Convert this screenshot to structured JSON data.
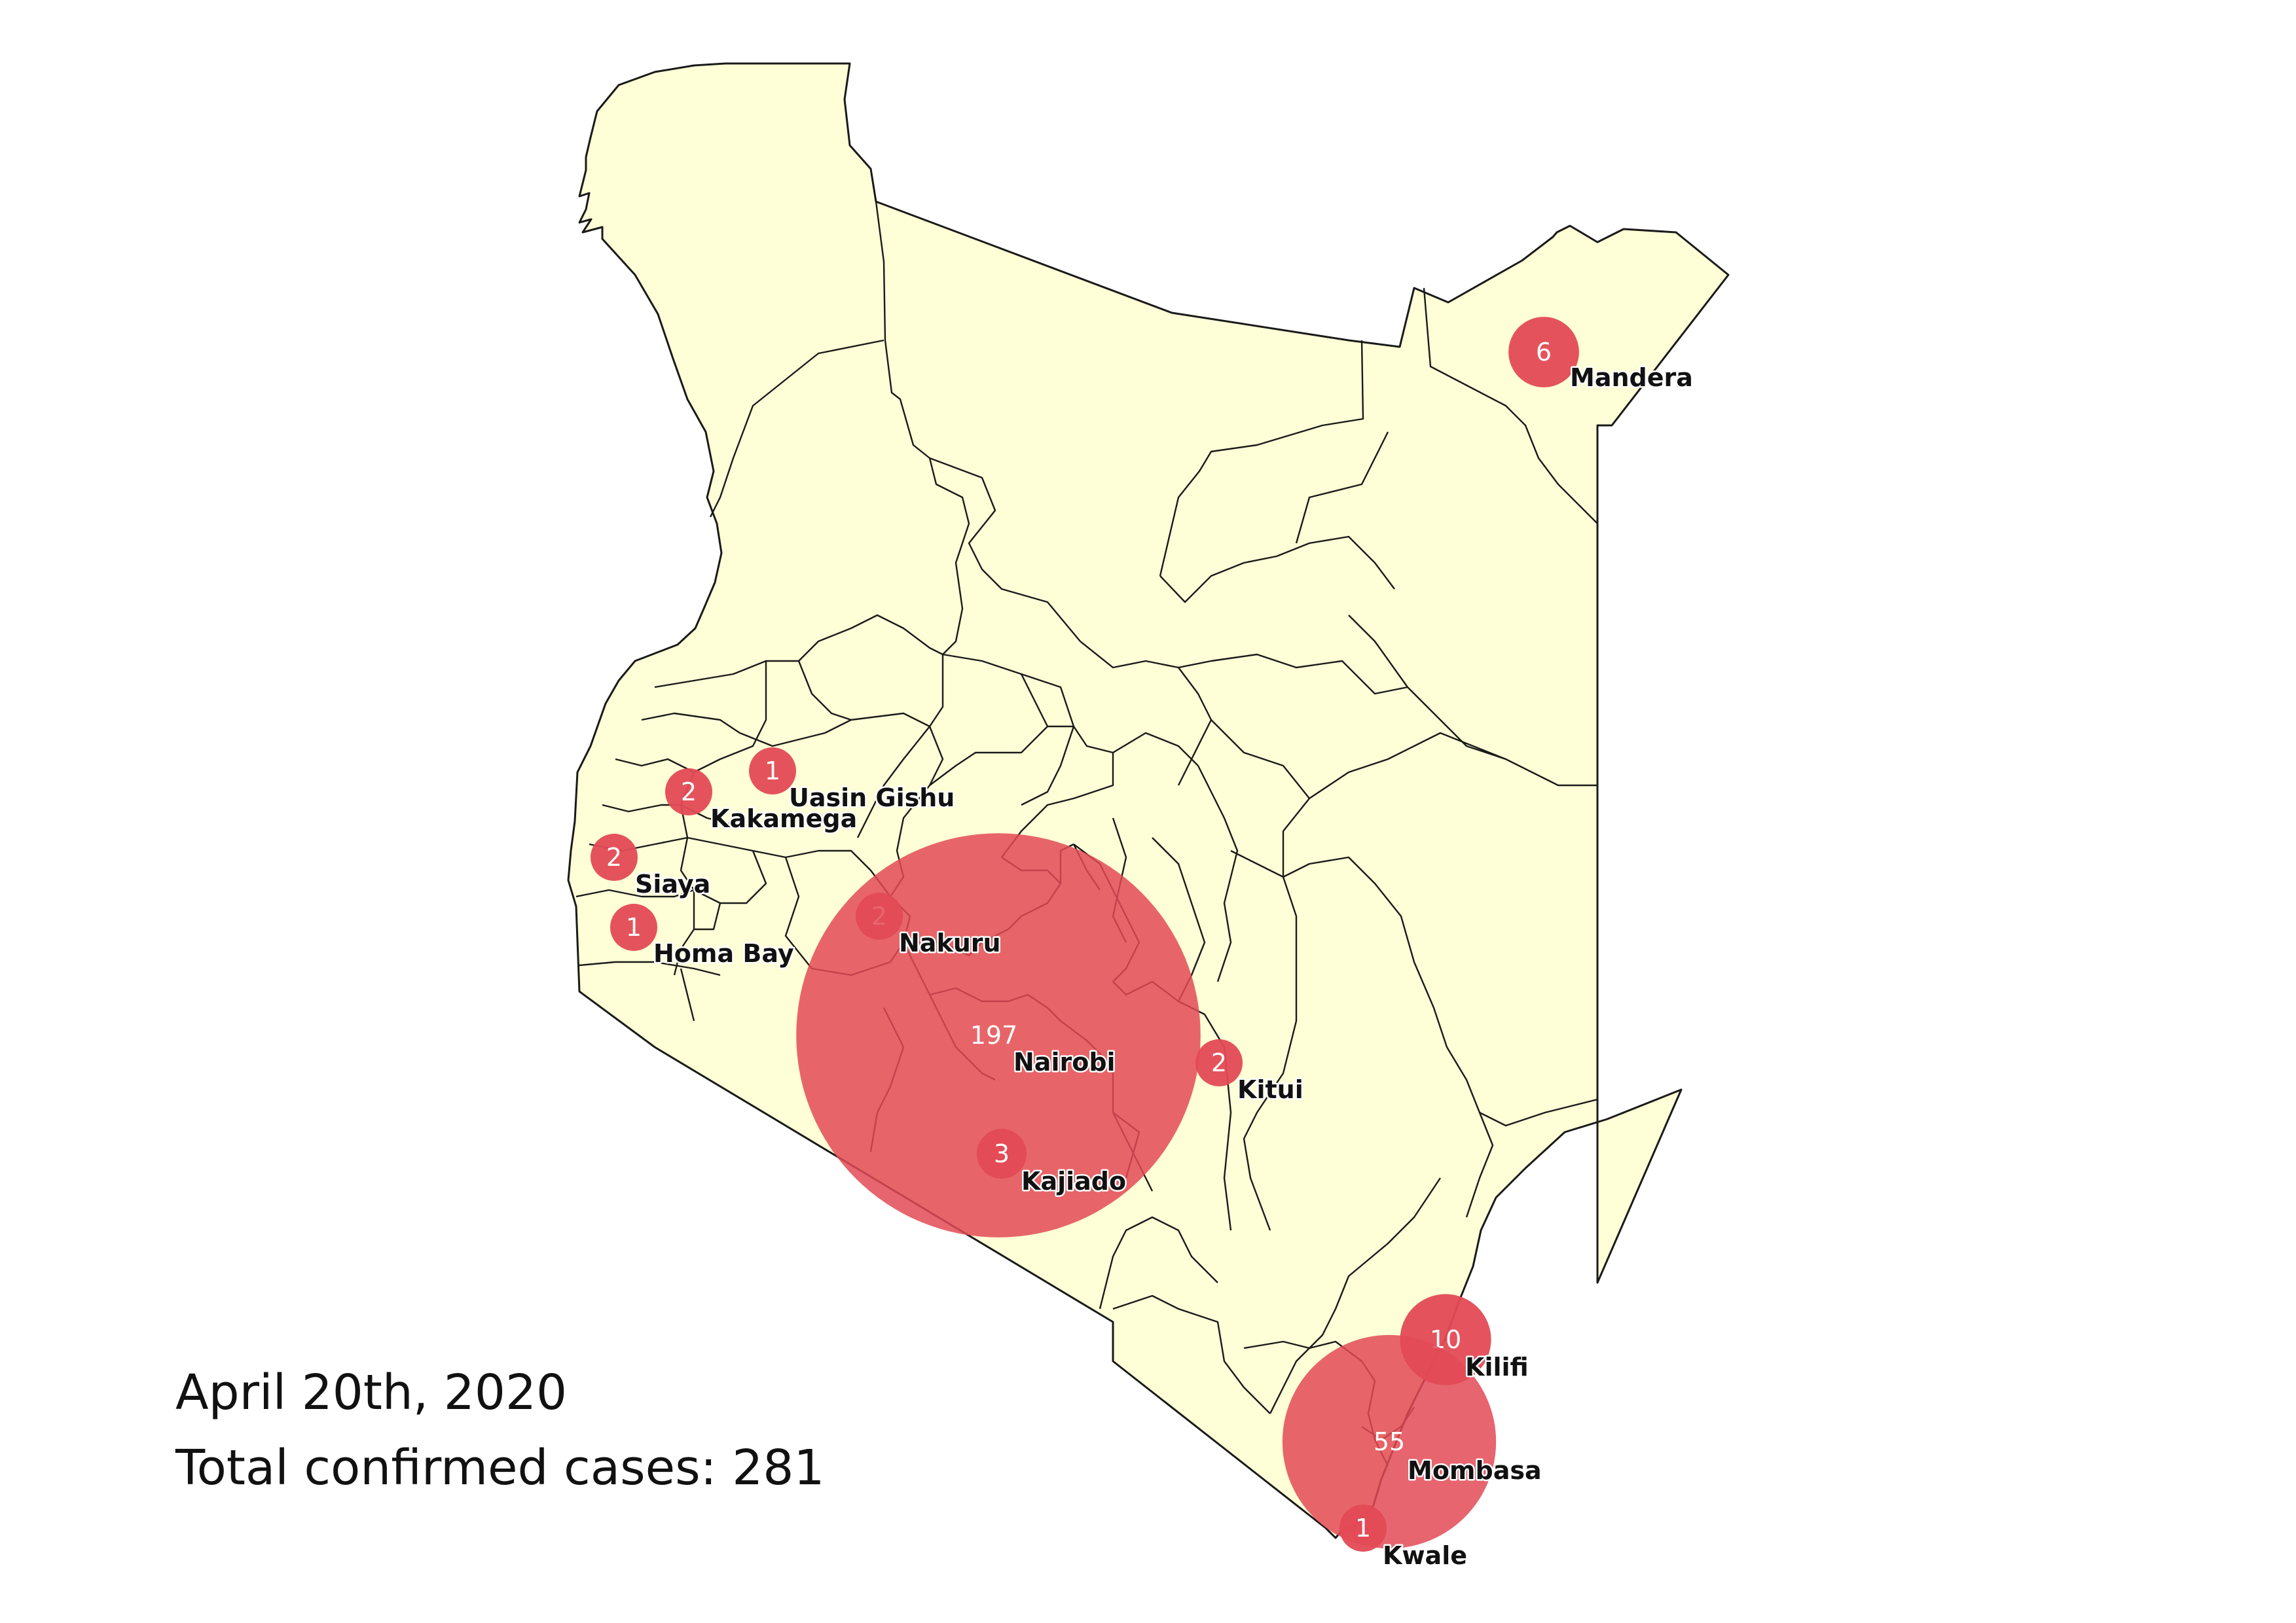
{
  "caption": {
    "date": "April 20th, 2020",
    "total_label": "Total confirmed cases",
    "total_separator": ": ",
    "total_value": "281"
  },
  "style": {
    "land_fill": "#fefed7",
    "border_color": "#1a1a1a",
    "bubble_color": "#e34a55",
    "label_color": "#111111"
  },
  "counties": [
    {
      "name": "Mandera",
      "cases": 6
    },
    {
      "name": "Uasin Gishu",
      "cases": 1
    },
    {
      "name": "Kakamega",
      "cases": 2
    },
    {
      "name": "Siaya",
      "cases": 2
    },
    {
      "name": "Homa Bay",
      "cases": 1
    },
    {
      "name": "Nakuru",
      "cases": 2
    },
    {
      "name": "Nairobi",
      "cases": 197
    },
    {
      "name": "Kitui",
      "cases": 2
    },
    {
      "name": "Kajiado",
      "cases": 3
    },
    {
      "name": "Kilifi",
      "cases": 10
    },
    {
      "name": "Mombasa",
      "cases": 55
    },
    {
      "name": "Kwale",
      "cases": 1
    }
  ]
}
